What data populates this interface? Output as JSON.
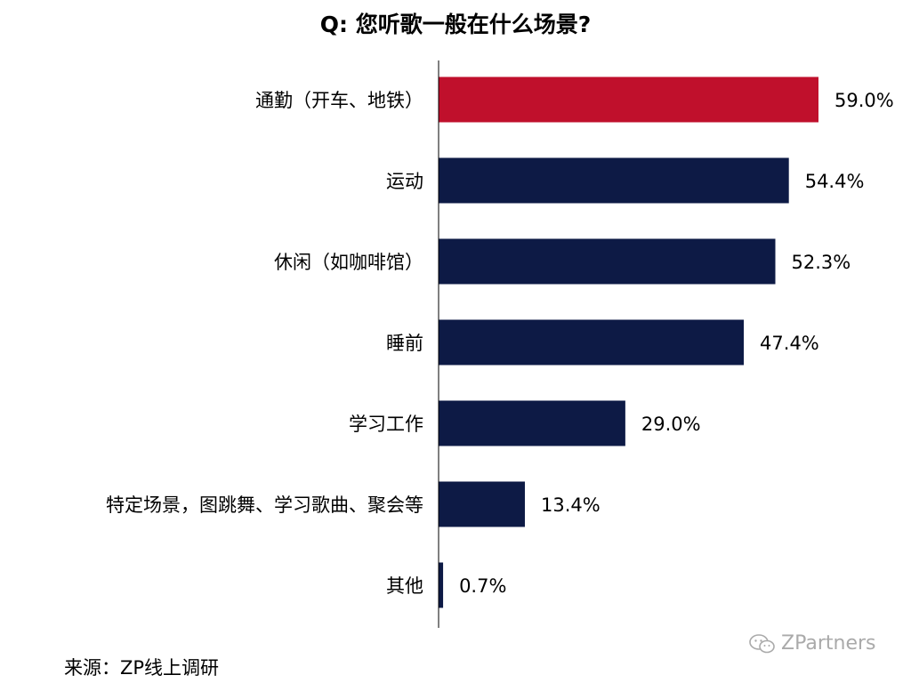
{
  "title": "Q: 您听歌一般在什么场景?",
  "source": "来源：ZP线上调研",
  "watermark": "ZPartners",
  "colors": {
    "highlight": "#c0102c",
    "bar": "#0d1a45",
    "axis": "#000000",
    "text": "#000000"
  },
  "chart_data": {
    "type": "bar",
    "orientation": "horizontal",
    "categories": [
      "通勤（开车、地铁）",
      "运动",
      "休闲（如咖啡馆）",
      "睡前",
      "学习工作",
      "特定场景，图跳舞、学习歌曲、聚会等",
      "其他"
    ],
    "values": [
      59.0,
      54.4,
      52.3,
      47.4,
      29.0,
      13.4,
      0.7
    ],
    "data_labels": [
      "59.0%",
      "54.4%",
      "52.3%",
      "47.4%",
      "29.0%",
      "13.4%",
      "0.7%"
    ],
    "highlight_index": 0,
    "xlim": [
      0,
      70
    ],
    "grid": false,
    "legend": "none"
  }
}
